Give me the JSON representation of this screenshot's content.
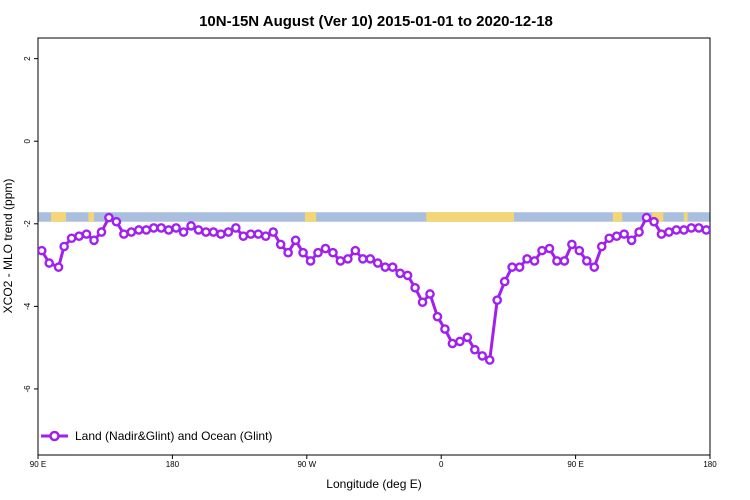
{
  "chart_data": {
    "type": "line",
    "title": "10N-15N August (Ver 10)   2015-01-01 to 2020-12-18",
    "xlabel": "Longitude (deg E)",
    "ylabel": "XCO2 - MLO trend (ppm)",
    "xlim": [
      90,
      450
    ],
    "ylim": [
      -7.6,
      2.5
    ],
    "x_ticks": [
      {
        "value": 90,
        "label": "90 E"
      },
      {
        "value": 162,
        "label": "180"
      },
      {
        "value": 234,
        "label": "90 W"
      },
      {
        "value": 306,
        "label": "0"
      },
      {
        "value": 378,
        "label": "90 E"
      },
      {
        "value": 450,
        "label": "180"
      }
    ],
    "y_ticks": [
      {
        "value": 2,
        "label": "2"
      },
      {
        "value": 0,
        "label": "0"
      },
      {
        "value": -2,
        "label": "-2"
      },
      {
        "value": -4,
        "label": "-4"
      },
      {
        "value": -6,
        "label": "-6"
      }
    ],
    "grid": false,
    "legend_position": "bottom-left",
    "land_ocean_strip": {
      "y_range": [
        -1.95,
        -1.72
      ],
      "ocean_color": "#a9bfdd",
      "land_color": "#f5d675",
      "land_segments": [
        [
          97,
          105
        ],
        [
          117,
          120
        ],
        [
          233,
          239
        ],
        [
          298,
          345
        ],
        [
          398,
          403
        ],
        [
          419,
          425
        ],
        [
          436,
          438
        ]
      ]
    },
    "series": [
      {
        "name": "Land (Nadir&Glint) and Ocean (Glint)",
        "color": "#a020f0",
        "marker": "open-circle",
        "x": [
          92,
          96,
          101,
          104,
          108,
          112,
          116,
          120,
          124,
          128,
          132,
          136,
          140,
          144,
          148,
          152,
          156,
          160,
          164,
          168,
          172,
          176,
          180,
          184,
          188,
          192,
          196,
          200,
          204,
          208,
          212,
          216,
          220,
          224,
          228,
          232,
          236,
          240,
          244,
          248,
          252,
          256,
          260,
          264,
          268,
          272,
          276,
          280,
          284,
          288,
          292,
          296,
          300,
          304,
          308,
          312,
          316,
          320,
          324,
          328,
          332,
          336,
          340,
          344,
          348,
          352,
          356,
          360,
          364,
          368,
          372,
          376,
          380,
          384,
          388,
          392,
          396,
          400,
          404,
          408,
          412,
          416,
          420,
          424,
          428,
          432,
          436,
          440,
          444,
          448
        ],
        "values": [
          -2.65,
          -2.95,
          -3.05,
          -2.55,
          -2.35,
          -2.3,
          -2.25,
          -2.4,
          -2.2,
          -1.85,
          -1.95,
          -2.25,
          -2.2,
          -2.15,
          -2.15,
          -2.1,
          -2.1,
          -2.15,
          -2.1,
          -2.2,
          -2.05,
          -2.15,
          -2.2,
          -2.2,
          -2.25,
          -2.2,
          -2.1,
          -2.3,
          -2.25,
          -2.25,
          -2.3,
          -2.2,
          -2.5,
          -2.7,
          -2.4,
          -2.7,
          -2.9,
          -2.7,
          -2.6,
          -2.7,
          -2.9,
          -2.85,
          -2.65,
          -2.85,
          -2.85,
          -2.95,
          -3.05,
          -3.05,
          -3.2,
          -3.25,
          -3.55,
          -3.9,
          -3.7,
          -4.25,
          -4.55,
          -4.9,
          -4.85,
          -4.75,
          -5.05,
          -5.2,
          -5.3,
          -3.85,
          -3.4,
          -3.05,
          -3.05,
          -2.85,
          -2.9,
          -2.65,
          -2.6,
          -2.9,
          -2.9,
          -2.5,
          -2.65,
          -2.9,
          -3.05,
          -2.55,
          -2.35,
          -2.3,
          -2.25,
          -2.4,
          -2.2,
          -1.85,
          -1.95,
          -2.25,
          -2.2,
          -2.15,
          -2.15,
          -2.1,
          -2.1,
          -2.15
        ]
      }
    ]
  }
}
